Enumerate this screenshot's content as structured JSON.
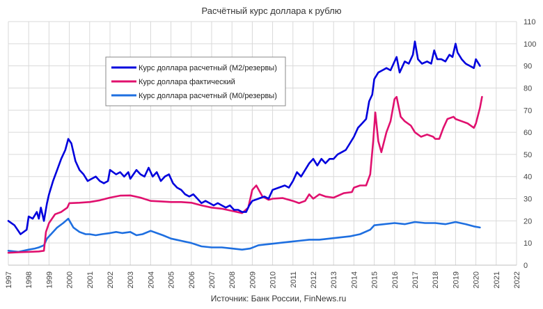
{
  "chart_data": {
    "type": "line",
    "title": "Расчётный  курс доллара  к рублю",
    "source": "Источник: Банк России, FinNews.ru",
    "xlabel": "",
    "ylabel": "",
    "xlim": [
      1997,
      2022
    ],
    "ylim": [
      0,
      110
    ],
    "x_ticks": [
      "1997",
      "1998",
      "1999",
      "2000",
      "2001",
      "2002",
      "2003",
      "2004",
      "2005",
      "2006",
      "2007",
      "2008",
      "2009",
      "2010",
      "2011",
      "2012",
      "2013",
      "2014",
      "2015",
      "2016",
      "2017",
      "2018",
      "2019",
      "2020",
      "2021",
      "2022"
    ],
    "y_ticks": [
      "0",
      "10",
      "20",
      "30",
      "40",
      "50",
      "60",
      "70",
      "80",
      "90",
      "100",
      "110"
    ],
    "grid": true,
    "legend_position": "top-left",
    "series": [
      {
        "name": "Курс доллара расчетный (М2/резервы)",
        "color": "#0000dd",
        "points": [
          [
            1997,
            20
          ],
          [
            1997.3,
            18
          ],
          [
            1997.6,
            14
          ],
          [
            1997.9,
            16
          ],
          [
            1998.0,
            22
          ],
          [
            1998.2,
            21
          ],
          [
            1998.4,
            24
          ],
          [
            1998.5,
            21
          ],
          [
            1998.6,
            26
          ],
          [
            1998.75,
            20
          ],
          [
            1998.9,
            28
          ],
          [
            1999.0,
            32
          ],
          [
            1999.2,
            38
          ],
          [
            1999.4,
            43
          ],
          [
            1999.6,
            48
          ],
          [
            1999.8,
            52
          ],
          [
            1999.95,
            57
          ],
          [
            2000.1,
            55
          ],
          [
            2000.3,
            47
          ],
          [
            2000.5,
            43
          ],
          [
            2000.7,
            41
          ],
          [
            2000.9,
            38
          ],
          [
            2001.1,
            39
          ],
          [
            2001.3,
            40
          ],
          [
            2001.5,
            38
          ],
          [
            2001.7,
            37
          ],
          [
            2001.9,
            38
          ],
          [
            2002.0,
            43
          ],
          [
            2002.3,
            41
          ],
          [
            2002.5,
            42
          ],
          [
            2002.7,
            40
          ],
          [
            2002.9,
            42
          ],
          [
            2003.0,
            39
          ],
          [
            2003.3,
            43
          ],
          [
            2003.5,
            41
          ],
          [
            2003.7,
            40
          ],
          [
            2003.9,
            44
          ],
          [
            2004.1,
            40
          ],
          [
            2004.3,
            42
          ],
          [
            2004.5,
            38
          ],
          [
            2004.7,
            40
          ],
          [
            2004.9,
            41
          ],
          [
            2005.1,
            37
          ],
          [
            2005.3,
            35
          ],
          [
            2005.5,
            34
          ],
          [
            2005.7,
            32
          ],
          [
            2005.9,
            31
          ],
          [
            2006.1,
            32
          ],
          [
            2006.3,
            30
          ],
          [
            2006.5,
            28
          ],
          [
            2006.7,
            29
          ],
          [
            2006.9,
            28
          ],
          [
            2007.1,
            27
          ],
          [
            2007.3,
            28
          ],
          [
            2007.5,
            27
          ],
          [
            2007.7,
            26
          ],
          [
            2007.9,
            27
          ],
          [
            2008.1,
            25
          ],
          [
            2008.3,
            25
          ],
          [
            2008.5,
            24
          ],
          [
            2008.7,
            24
          ],
          [
            2008.85,
            27
          ],
          [
            2009.0,
            29
          ],
          [
            2009.3,
            30
          ],
          [
            2009.6,
            31
          ],
          [
            2009.8,
            30
          ],
          [
            2010.0,
            34
          ],
          [
            2010.3,
            35
          ],
          [
            2010.6,
            36
          ],
          [
            2010.8,
            35
          ],
          [
            2011.0,
            38
          ],
          [
            2011.2,
            42
          ],
          [
            2011.4,
            40
          ],
          [
            2011.6,
            43
          ],
          [
            2011.8,
            46
          ],
          [
            2012.0,
            48
          ],
          [
            2012.2,
            45
          ],
          [
            2012.4,
            48
          ],
          [
            2012.6,
            46
          ],
          [
            2012.8,
            48
          ],
          [
            2013.0,
            48
          ],
          [
            2013.2,
            50
          ],
          [
            2013.4,
            51
          ],
          [
            2013.6,
            52
          ],
          [
            2013.8,
            55
          ],
          [
            2014.0,
            58
          ],
          [
            2014.2,
            62
          ],
          [
            2014.4,
            64
          ],
          [
            2014.6,
            66
          ],
          [
            2014.75,
            74
          ],
          [
            2014.9,
            77
          ],
          [
            2015.0,
            84
          ],
          [
            2015.2,
            87
          ],
          [
            2015.4,
            88
          ],
          [
            2015.6,
            89
          ],
          [
            2015.8,
            88
          ],
          [
            2015.95,
            91
          ],
          [
            2016.1,
            94
          ],
          [
            2016.25,
            87
          ],
          [
            2016.5,
            92
          ],
          [
            2016.7,
            91
          ],
          [
            2016.9,
            95
          ],
          [
            2017.0,
            101
          ],
          [
            2017.15,
            93
          ],
          [
            2017.35,
            91
          ],
          [
            2017.6,
            92
          ],
          [
            2017.8,
            91
          ],
          [
            2017.95,
            97
          ],
          [
            2018.1,
            93
          ],
          [
            2018.3,
            93
          ],
          [
            2018.5,
            92
          ],
          [
            2018.7,
            95
          ],
          [
            2018.85,
            94
          ],
          [
            2019.0,
            100
          ],
          [
            2019.1,
            96
          ],
          [
            2019.3,
            93
          ],
          [
            2019.5,
            91
          ],
          [
            2019.7,
            90
          ],
          [
            2019.9,
            89
          ],
          [
            2020.0,
            93
          ],
          [
            2020.2,
            90
          ]
        ]
      },
      {
        "name": "Курс доллара фактический",
        "color": "#e0106e",
        "points": [
          [
            1997,
            5.6
          ],
          [
            1997.5,
            5.8
          ],
          [
            1998.0,
            6
          ],
          [
            1998.5,
            6.2
          ],
          [
            1998.75,
            6.5
          ],
          [
            1998.85,
            15
          ],
          [
            1999.0,
            19
          ],
          [
            1999.3,
            23
          ],
          [
            1999.6,
            24
          ],
          [
            1999.9,
            26
          ],
          [
            2000.0,
            28
          ],
          [
            2000.5,
            28.2
          ],
          [
            2001.0,
            28.5
          ],
          [
            2001.5,
            29.3
          ],
          [
            2002.0,
            30.5
          ],
          [
            2002.5,
            31.4
          ],
          [
            2003.0,
            31.5
          ],
          [
            2003.5,
            30.5
          ],
          [
            2004.0,
            29
          ],
          [
            2004.5,
            28.8
          ],
          [
            2005.0,
            28.5
          ],
          [
            2005.5,
            28.5
          ],
          [
            2006.0,
            28.2
          ],
          [
            2006.5,
            27
          ],
          [
            2007.0,
            26
          ],
          [
            2007.5,
            25.5
          ],
          [
            2008.0,
            24.5
          ],
          [
            2008.5,
            23.5
          ],
          [
            2008.8,
            26
          ],
          [
            2009.0,
            34
          ],
          [
            2009.2,
            36
          ],
          [
            2009.5,
            31
          ],
          [
            2009.8,
            29.5
          ],
          [
            2010.0,
            30
          ],
          [
            2010.5,
            30.3
          ],
          [
            2011.0,
            29
          ],
          [
            2011.3,
            28
          ],
          [
            2011.6,
            29
          ],
          [
            2011.8,
            32
          ],
          [
            2012.0,
            30
          ],
          [
            2012.3,
            32
          ],
          [
            2012.6,
            31
          ],
          [
            2013.0,
            30.5
          ],
          [
            2013.5,
            32.5
          ],
          [
            2013.9,
            33
          ],
          [
            2014.0,
            35
          ],
          [
            2014.3,
            36
          ],
          [
            2014.6,
            36
          ],
          [
            2014.8,
            41
          ],
          [
            2014.95,
            56
          ],
          [
            2015.05,
            69
          ],
          [
            2015.2,
            56
          ],
          [
            2015.35,
            51
          ],
          [
            2015.6,
            60
          ],
          [
            2015.8,
            65
          ],
          [
            2016.0,
            75
          ],
          [
            2016.1,
            76
          ],
          [
            2016.3,
            67
          ],
          [
            2016.5,
            65
          ],
          [
            2016.8,
            63
          ],
          [
            2017.0,
            60
          ],
          [
            2017.3,
            58
          ],
          [
            2017.6,
            59
          ],
          [
            2017.9,
            58
          ],
          [
            2018.0,
            57
          ],
          [
            2018.2,
            57
          ],
          [
            2018.4,
            62
          ],
          [
            2018.6,
            66
          ],
          [
            2018.9,
            67
          ],
          [
            2019.0,
            66
          ],
          [
            2019.3,
            65
          ],
          [
            2019.6,
            64
          ],
          [
            2019.9,
            62
          ],
          [
            2020.0,
            64
          ],
          [
            2020.2,
            71
          ],
          [
            2020.3,
            76
          ]
        ]
      },
      {
        "name": "Курс доллара расчетный (М0/резервы)",
        "color": "#1e6fe0",
        "points": [
          [
            1997,
            6.5
          ],
          [
            1997.5,
            6
          ],
          [
            1998.0,
            7
          ],
          [
            1998.3,
            7.5
          ],
          [
            1998.5,
            8
          ],
          [
            1998.75,
            9
          ],
          [
            1998.9,
            12
          ],
          [
            1999.1,
            14
          ],
          [
            1999.4,
            17
          ],
          [
            1999.7,
            19
          ],
          [
            1999.95,
            21
          ],
          [
            2000.2,
            17
          ],
          [
            2000.5,
            15
          ],
          [
            2000.8,
            14
          ],
          [
            2001.0,
            14
          ],
          [
            2001.3,
            13.5
          ],
          [
            2001.6,
            14
          ],
          [
            2002.0,
            14.5
          ],
          [
            2002.3,
            15
          ],
          [
            2002.6,
            14.5
          ],
          [
            2003.0,
            15
          ],
          [
            2003.3,
            13.5
          ],
          [
            2003.6,
            14
          ],
          [
            2004.0,
            15.5
          ],
          [
            2004.3,
            14.5
          ],
          [
            2004.6,
            13.5
          ],
          [
            2005.0,
            12
          ],
          [
            2005.5,
            11
          ],
          [
            2006.0,
            10
          ],
          [
            2006.5,
            8.5
          ],
          [
            2007.0,
            8
          ],
          [
            2007.5,
            8
          ],
          [
            2008.0,
            7.5
          ],
          [
            2008.5,
            7
          ],
          [
            2008.9,
            7.5
          ],
          [
            2009.3,
            9
          ],
          [
            2009.8,
            9.5
          ],
          [
            2010.3,
            10
          ],
          [
            2010.8,
            10.5
          ],
          [
            2011.3,
            11
          ],
          [
            2011.8,
            11.5
          ],
          [
            2012.3,
            11.5
          ],
          [
            2012.8,
            12
          ],
          [
            2013.3,
            12.5
          ],
          [
            2013.8,
            13
          ],
          [
            2014.3,
            14
          ],
          [
            2014.8,
            16
          ],
          [
            2015.0,
            18
          ],
          [
            2015.5,
            18.5
          ],
          [
            2016.0,
            19
          ],
          [
            2016.5,
            18.5
          ],
          [
            2017.0,
            19.5
          ],
          [
            2017.5,
            19
          ],
          [
            2018.0,
            19
          ],
          [
            2018.5,
            18.5
          ],
          [
            2019.0,
            19.5
          ],
          [
            2019.5,
            18.5
          ],
          [
            2019.9,
            17.5
          ],
          [
            2020.2,
            17
          ]
        ]
      }
    ]
  }
}
